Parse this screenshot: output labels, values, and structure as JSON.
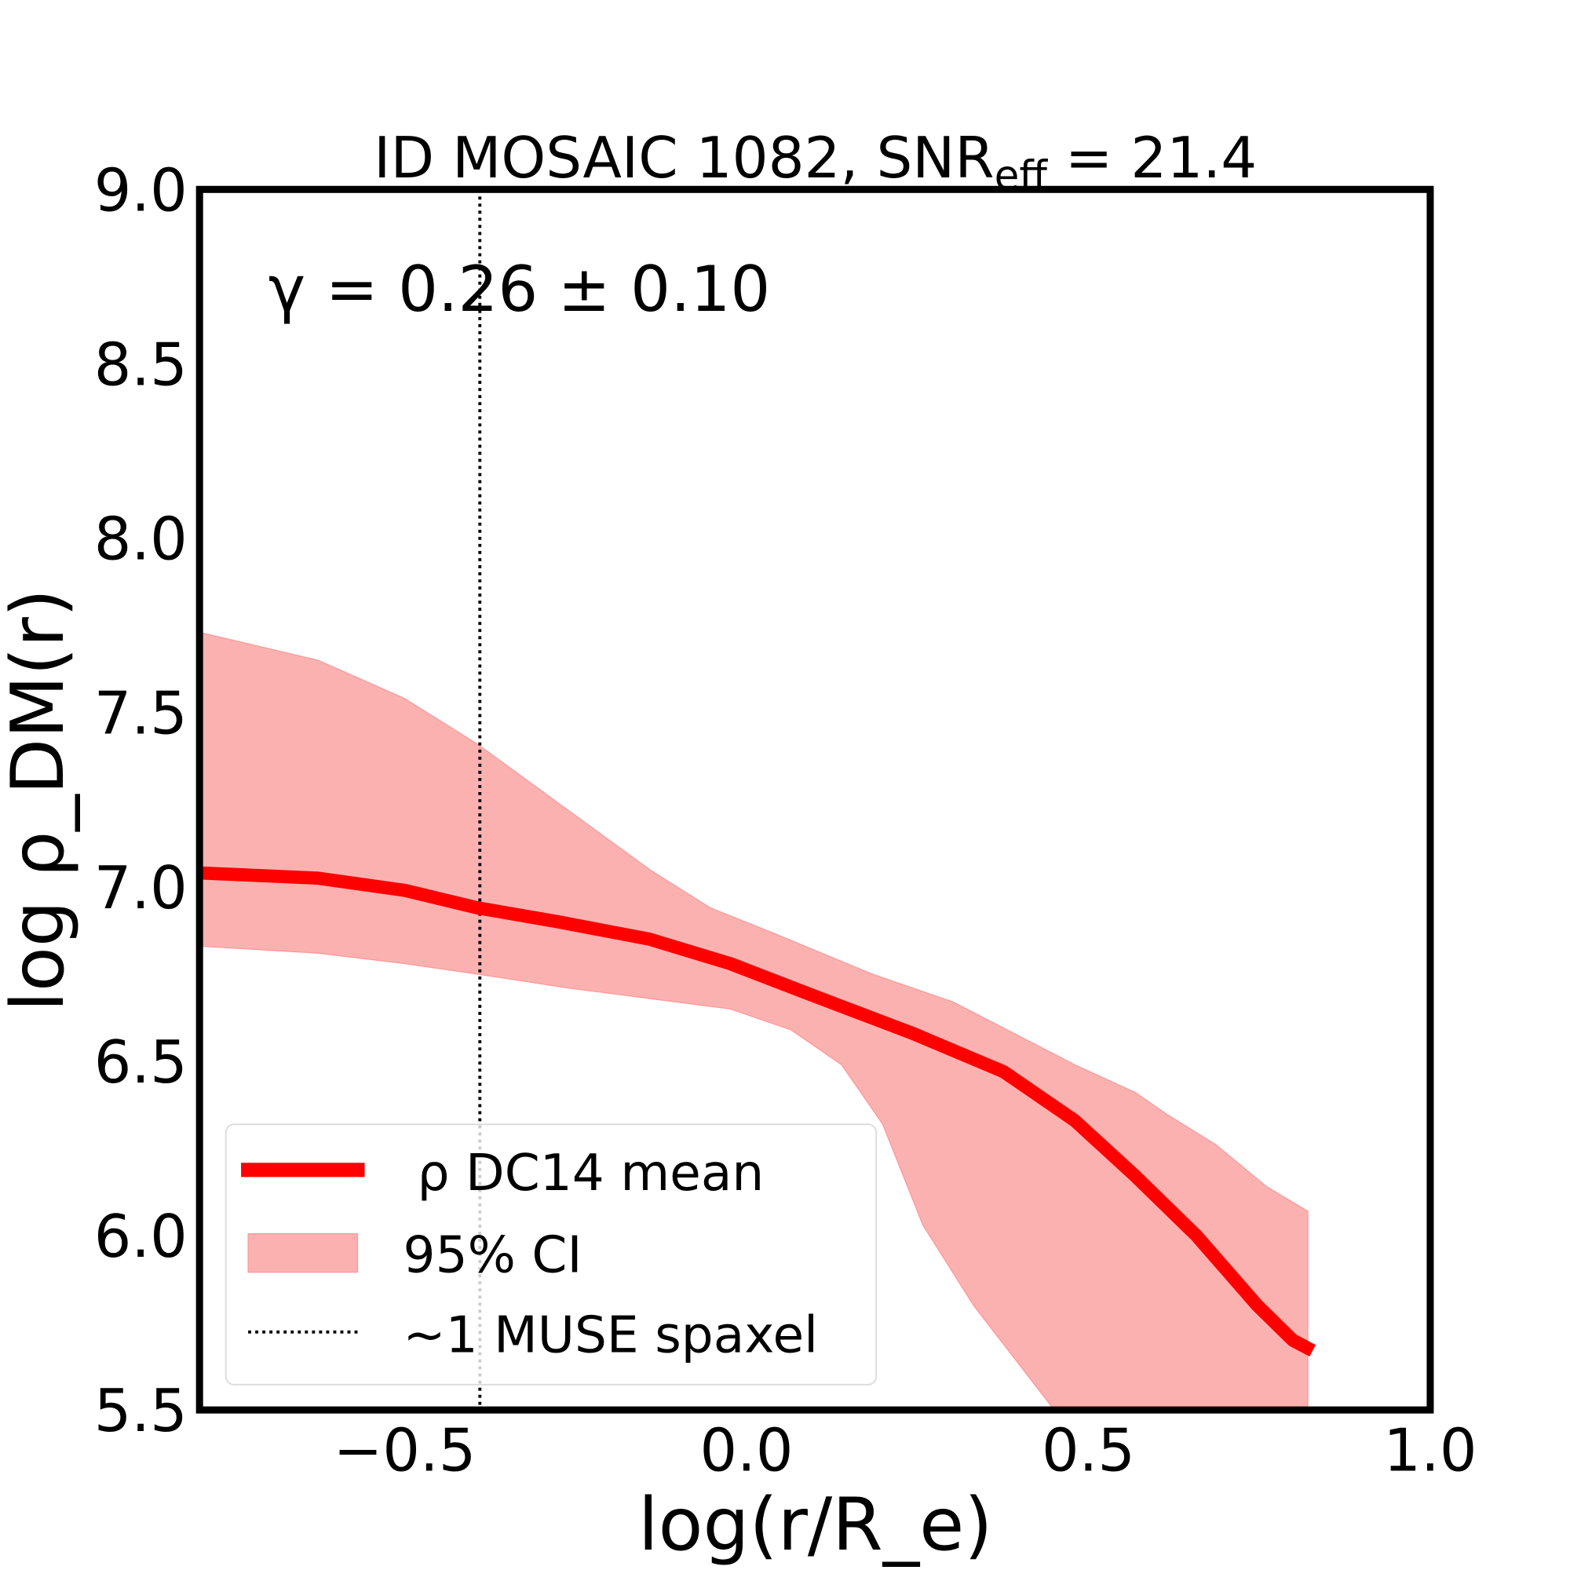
{
  "chart_data": {
    "type": "line",
    "title": "ID MOSAIC 1082, SNR",
    "title_sub": "eff",
    "title_tail": " = 21.4",
    "annotation": "γ = 0.26 ± 0.10",
    "xlabel": "log(r/R_e)",
    "ylabel": "log ρ_DM(r)",
    "xlim": [
      -0.8,
      1.0
    ],
    "ylim": [
      5.5,
      9.0
    ],
    "xticks": [
      -0.5,
      0.0,
      0.5,
      1.0
    ],
    "xtick_labels": [
      "−0.5",
      "0.0",
      "0.5",
      "1.0"
    ],
    "yticks": [
      5.5,
      6.0,
      6.5,
      7.0,
      7.5,
      8.0,
      8.5,
      9.0
    ],
    "ytick_labels": [
      "5.5",
      "6.0",
      "6.5",
      "7.0",
      "7.5",
      "8.0",
      "8.5",
      "9.0"
    ],
    "grid": false,
    "legend_position": "lower-left",
    "legend": [
      "ρ DC14 mean",
      "95% CI",
      "~1 MUSE spaxel"
    ],
    "colors": {
      "mean": "#ff0000",
      "band": "#fcb1b1",
      "vline": "#000000"
    },
    "vline_x": -0.39,
    "mean": {
      "x": [
        -0.8,
        -0.627,
        -0.5,
        -0.394,
        -0.276,
        -0.142,
        -0.024,
        0.095,
        0.243,
        0.376,
        0.48,
        0.569,
        0.658,
        0.747,
        0.799,
        0.828
      ],
      "y": [
        7.04,
        7.025,
        6.99,
        6.94,
        6.9,
        6.85,
        6.78,
        6.69,
        6.58,
        6.47,
        6.33,
        6.17,
        6.0,
        5.8,
        5.7,
        5.67
      ]
    },
    "ci_upper": {
      "x": [
        -0.8,
        -0.627,
        -0.5,
        -0.394,
        -0.261,
        -0.142,
        -0.053,
        0.036,
        0.184,
        0.302,
        0.391,
        0.48,
        0.569,
        0.613,
        0.687,
        0.761,
        0.821
      ],
      "y": [
        7.73,
        7.65,
        7.54,
        7.41,
        7.22,
        7.05,
        6.94,
        6.87,
        6.75,
        6.67,
        6.58,
        6.49,
        6.41,
        6.35,
        6.26,
        6.14,
        6.07
      ]
    },
    "ci_lower": {
      "x": [
        -0.8,
        -0.627,
        -0.5,
        -0.394,
        -0.261,
        -0.142,
        -0.024,
        0.065,
        0.139,
        0.199,
        0.258,
        0.332,
        0.391,
        0.45,
        0.821
      ],
      "y": [
        6.83,
        6.81,
        6.78,
        6.75,
        6.71,
        6.68,
        6.65,
        6.59,
        6.49,
        6.32,
        6.03,
        5.8,
        5.65,
        5.5,
        5.5
      ]
    }
  }
}
